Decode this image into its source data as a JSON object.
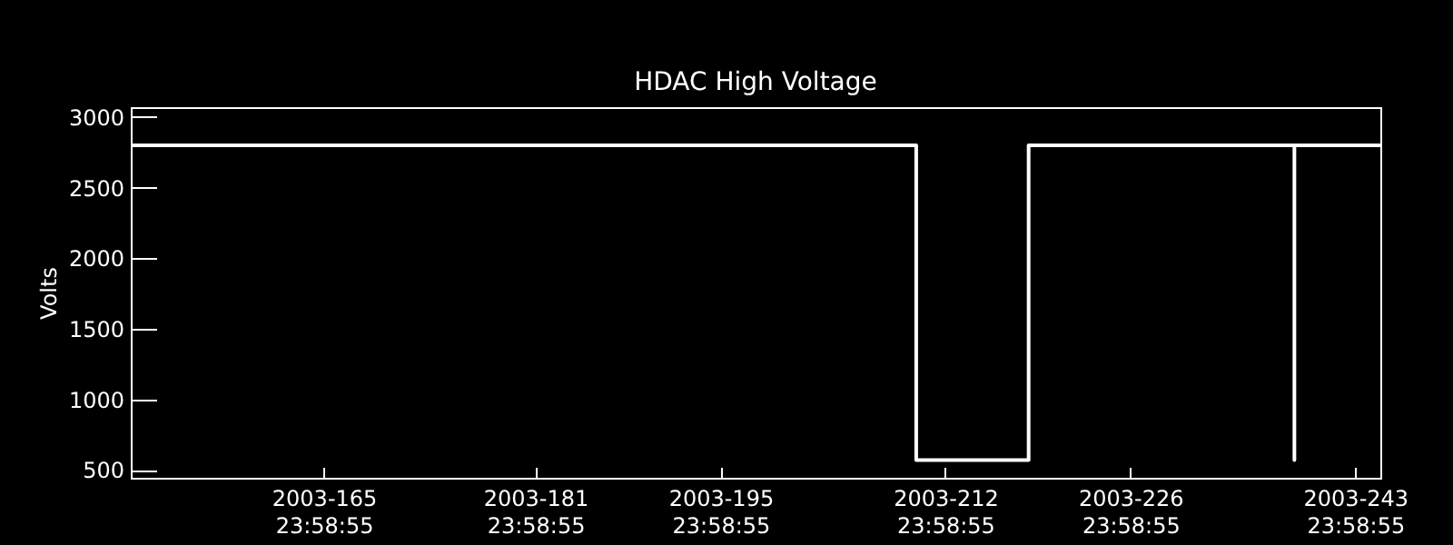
{
  "chart_data": {
    "type": "line",
    "title": "HDAC High Voltage",
    "ylabel": "Volts",
    "x": [
      "2003-05-31T09:35",
      "2003-07-29T19:11",
      "2003-07-29T19:11",
      "2003-08-07T07:11",
      "2003-08-07T07:11",
      "2003-08-27T09:35",
      "2003-08-27T09:35",
      "2003-08-27T09:35",
      "2003-09-02T21:35"
    ],
    "series": [
      {
        "color": "#ffffff",
        "values": [
          2800,
          2800,
          570,
          570,
          2800,
          2800,
          570,
          2800,
          2800
        ]
      }
    ],
    "xlim": [
      "2003-05-31T09:35",
      "2003-09-02T21:35"
    ],
    "xticks": [
      {
        "value": "2003-06-14T23:59",
        "label": "2003-165\n23:58:55"
      },
      {
        "value": "2003-06-30T23:59",
        "label": "2003-181\n23:58:55"
      },
      {
        "value": "2003-07-14T23:59",
        "label": "2003-195\n23:58:55"
      },
      {
        "value": "2003-07-31T23:59",
        "label": "2003-212\n23:58:55"
      },
      {
        "value": "2003-08-14T23:59",
        "label": "2003-226\n23:58:55"
      },
      {
        "value": "2003-08-31T23:59",
        "label": "2003-243\n23:58:55"
      }
    ],
    "ylim": [
      445,
      3070
    ],
    "yticks": [
      500,
      1000,
      1500,
      2000,
      2500,
      3000
    ],
    "grid": false
  }
}
